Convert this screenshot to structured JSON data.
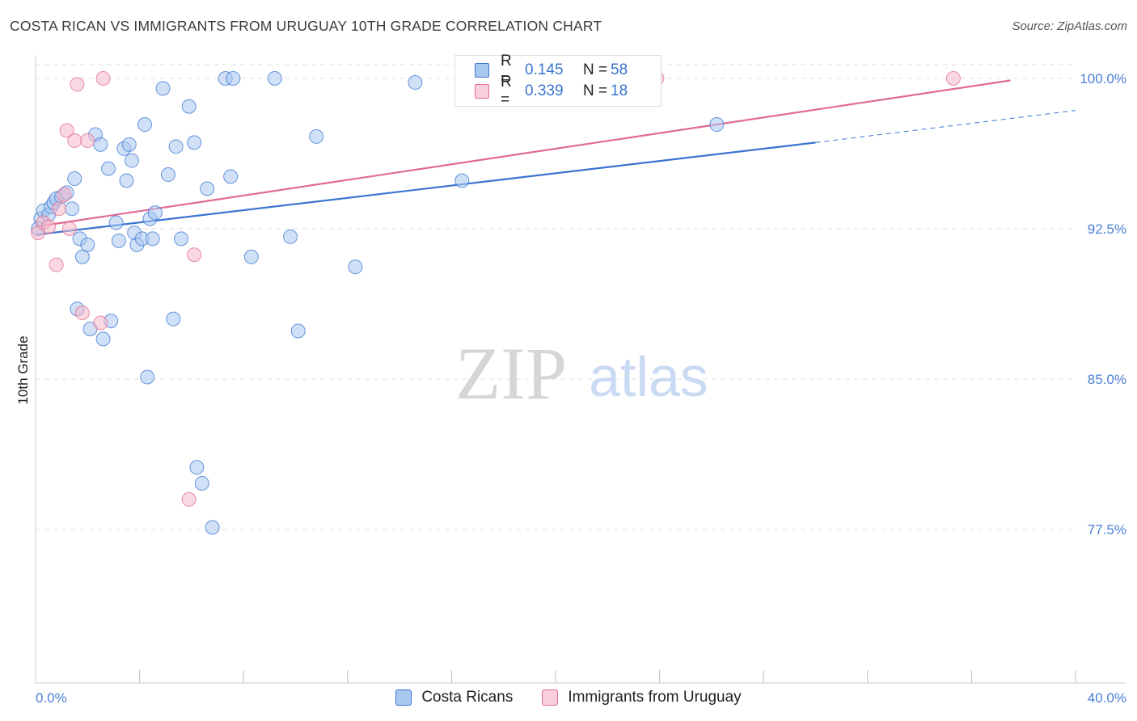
{
  "title": "COSTA RICAN VS IMMIGRANTS FROM URUGUAY 10TH GRADE CORRELATION CHART",
  "source": "Source: ZipAtlas.com",
  "watermark": {
    "zip": "ZIP",
    "atlas": "atlas"
  },
  "legend": {
    "series1": {
      "r_label": "R =",
      "r_value": "0.145",
      "n_label": "N =",
      "n_value": "58"
    },
    "series2": {
      "r_label": "R =",
      "r_value": "0.339",
      "n_label": "N =",
      "n_value": "18"
    }
  },
  "bottom_legend": {
    "series1": "Costa Ricans",
    "series2": "Immigrants from Uruguay"
  },
  "colors": {
    "blue": "#3b74d1",
    "blue_fill": "#a9c8f0",
    "pink": "#e06b93",
    "pink_fill": "#f5b8cb"
  },
  "chart_data": {
    "type": "scatter",
    "title": "COSTA RICAN VS IMMIGRANTS FROM URUGUAY 10TH GRADE CORRELATION CHART",
    "xlabel": "",
    "ylabel": "10th Grade",
    "xlim": [
      0,
      40
    ],
    "ylim": [
      71,
      101.5
    ],
    "x_tick_labels": [
      "0.0%",
      "40.0%"
    ],
    "y_ticks": [
      77.5,
      85.0,
      92.5,
      100.0
    ],
    "y_tick_labels": [
      "77.5%",
      "85.0%",
      "92.5%",
      "100.0%"
    ],
    "series": [
      {
        "name": "Costa Ricans",
        "color": "#3b74d1",
        "points": [
          [
            0.2,
            93.0
          ],
          [
            0.3,
            93.4
          ],
          [
            0.5,
            93.2
          ],
          [
            0.6,
            93.6
          ],
          [
            0.7,
            93.8
          ],
          [
            0.8,
            94.0
          ],
          [
            1.0,
            94.1
          ],
          [
            1.2,
            94.3
          ],
          [
            1.4,
            93.5
          ],
          [
            1.5,
            95.0
          ],
          [
            1.6,
            88.5
          ],
          [
            1.7,
            92.0
          ],
          [
            1.8,
            91.1
          ],
          [
            2.0,
            91.7
          ],
          [
            2.1,
            87.5
          ],
          [
            2.3,
            97.2
          ],
          [
            2.5,
            96.7
          ],
          [
            2.6,
            87.0
          ],
          [
            2.8,
            95.5
          ],
          [
            2.9,
            87.9
          ],
          [
            3.1,
            92.8
          ],
          [
            3.2,
            91.9
          ],
          [
            3.4,
            96.5
          ],
          [
            3.5,
            94.9
          ],
          [
            3.6,
            96.7
          ],
          [
            3.7,
            95.9
          ],
          [
            3.8,
            92.3
          ],
          [
            3.9,
            91.7
          ],
          [
            4.1,
            92.0
          ],
          [
            4.2,
            97.7
          ],
          [
            4.3,
            85.1
          ],
          [
            4.4,
            93.0
          ],
          [
            4.6,
            93.3
          ],
          [
            4.5,
            92.0
          ],
          [
            4.9,
            99.5
          ],
          [
            5.1,
            95.2
          ],
          [
            5.3,
            88.0
          ],
          [
            5.4,
            96.6
          ],
          [
            5.6,
            92.0
          ],
          [
            5.9,
            98.6
          ],
          [
            6.1,
            96.8
          ],
          [
            6.2,
            80.6
          ],
          [
            6.4,
            79.8
          ],
          [
            6.6,
            94.5
          ],
          [
            6.8,
            77.6
          ],
          [
            7.3,
            100.0
          ],
          [
            7.5,
            95.1
          ],
          [
            7.6,
            100.0
          ],
          [
            8.3,
            91.1
          ],
          [
            9.2,
            100.0
          ],
          [
            9.8,
            92.1
          ],
          [
            10.1,
            87.4
          ],
          [
            10.8,
            97.1
          ],
          [
            12.3,
            90.6
          ],
          [
            14.6,
            99.8
          ],
          [
            16.4,
            94.9
          ],
          [
            26.2,
            97.7
          ],
          [
            0.1,
            92.5
          ]
        ]
      },
      {
        "name": "Immigrants from Uruguay",
        "color": "#e06b93",
        "points": [
          [
            0.1,
            92.3
          ],
          [
            0.3,
            92.8
          ],
          [
            0.5,
            92.6
          ],
          [
            0.9,
            93.5
          ],
          [
            1.1,
            94.2
          ],
          [
            1.2,
            97.4
          ],
          [
            1.3,
            92.5
          ],
          [
            1.5,
            96.9
          ],
          [
            1.6,
            99.7
          ],
          [
            1.8,
            88.3
          ],
          [
            2.0,
            96.9
          ],
          [
            2.5,
            87.8
          ],
          [
            2.6,
            100.0
          ],
          [
            0.8,
            90.7
          ],
          [
            5.9,
            79.0
          ],
          [
            6.1,
            91.2
          ],
          [
            23.9,
            100.0
          ],
          [
            35.3,
            100.0
          ]
        ]
      }
    ],
    "trend_lines": [
      {
        "series": "Costa Ricans",
        "x": [
          0,
          30
        ],
        "y": [
          92.2,
          96.8
        ],
        "dashed_x": [
          30,
          40
        ],
        "dashed_y": [
          96.8,
          98.4
        ]
      },
      {
        "series": "Immigrants from Uruguay",
        "x": [
          0,
          37.5
        ],
        "y": [
          92.6,
          99.9
        ]
      }
    ]
  }
}
